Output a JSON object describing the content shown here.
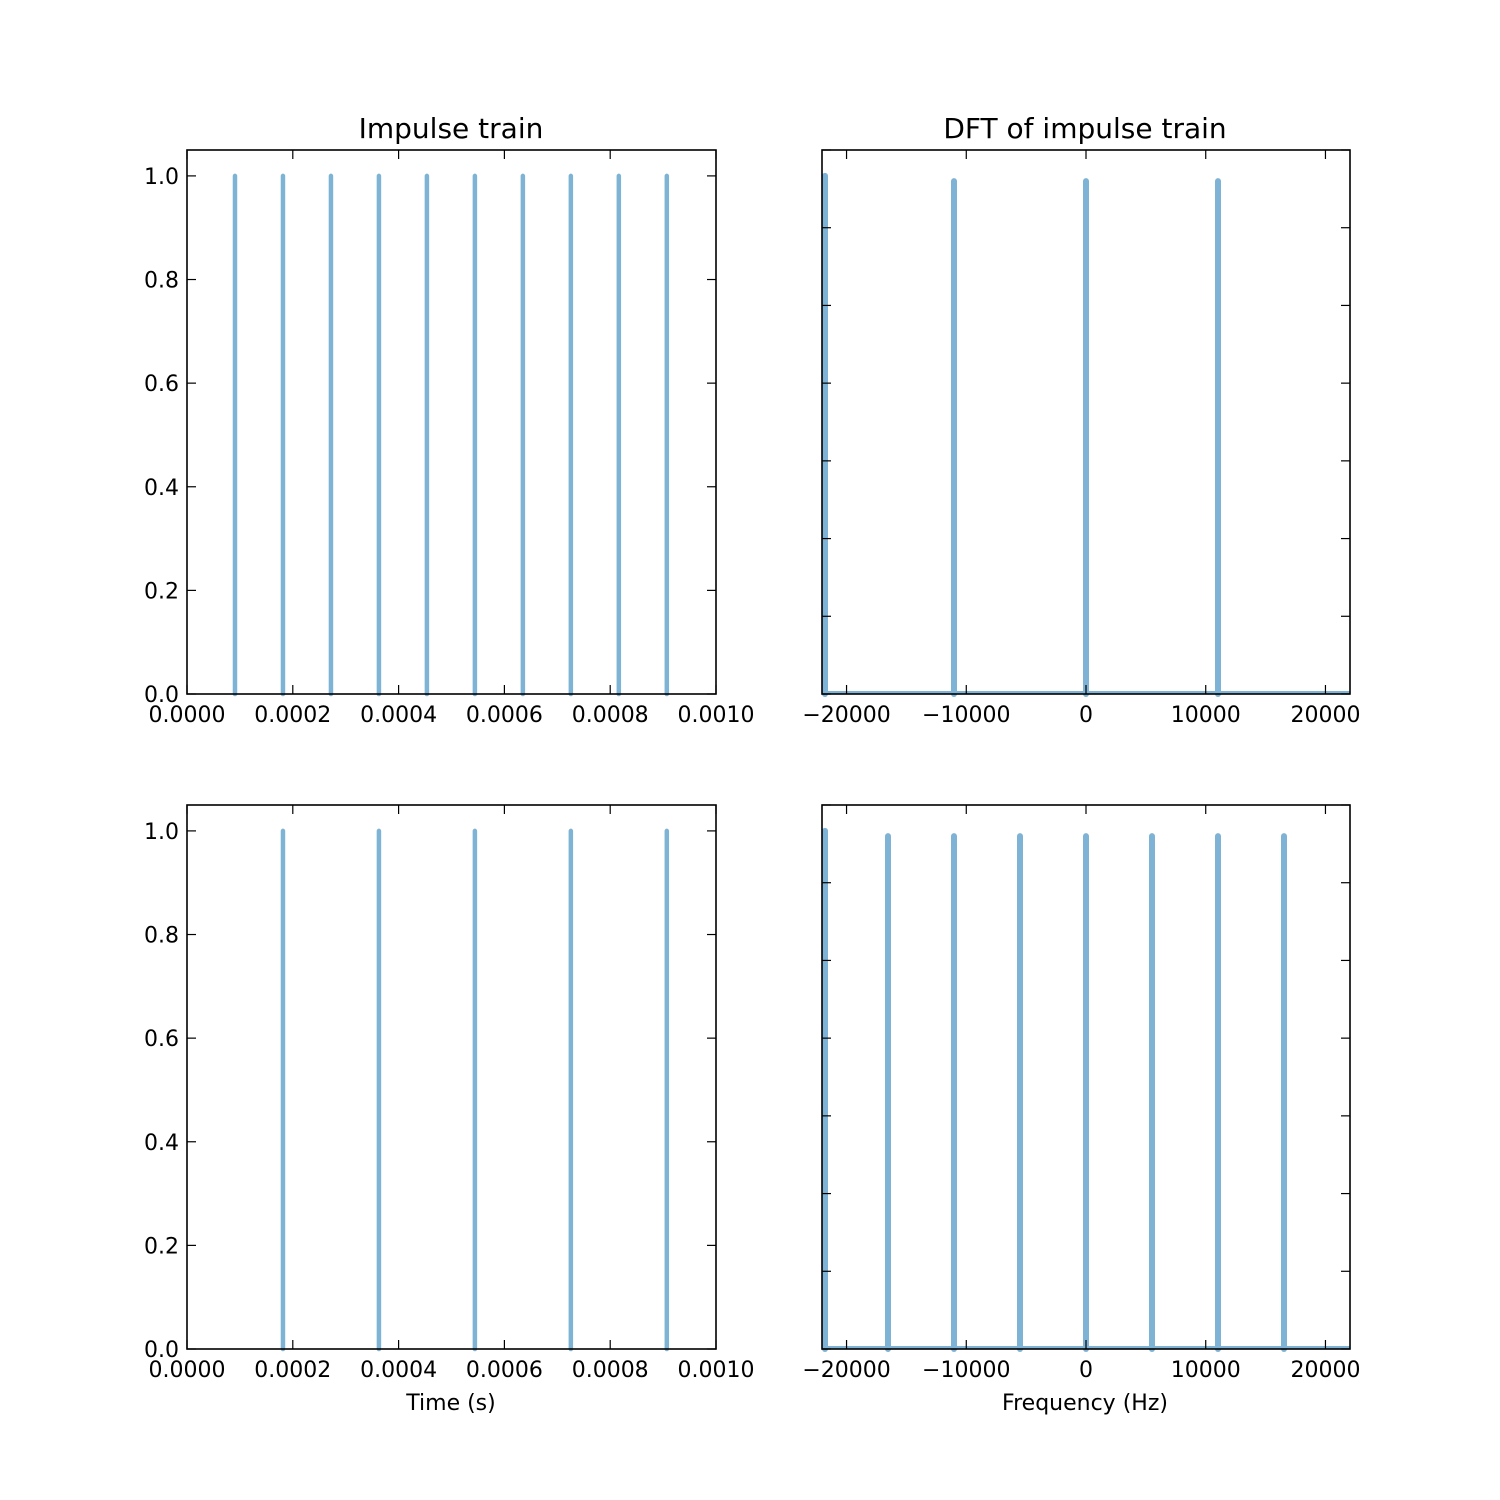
{
  "figure": {
    "background": "#ffffff",
    "line_color": "#7fb3d5"
  },
  "chart_data": [
    {
      "type": "line",
      "panel": "top-left",
      "title": "Impulse train",
      "xlabel": "",
      "ylabel": "",
      "xlim": [
        0,
        0.001
      ],
      "ylim": [
        0,
        1.05
      ],
      "xticks": [
        0.0,
        0.0002,
        0.0004,
        0.0006,
        0.0008,
        0.001
      ],
      "xtick_labels": [
        "0.0000",
        "0.0002",
        "0.0004",
        "0.0006",
        "0.0008",
        "0.0010"
      ],
      "yticks": [
        0.0,
        0.2,
        0.4,
        0.6,
        0.8,
        1.0
      ],
      "ytick_labels": [
        "0.0",
        "0.2",
        "0.4",
        "0.6",
        "0.8",
        "1.0"
      ],
      "impulses": {
        "x": [
          9.07e-05,
          0.0001814,
          0.0002721,
          0.0003628,
          0.0004535,
          0.0005442,
          0.0006349,
          0.0007256,
          0.0008163,
          0.000907
        ],
        "y": [
          1,
          1,
          1,
          1,
          1,
          1,
          1,
          1,
          1,
          1
        ]
      },
      "baseline": null,
      "grid": false,
      "legend": "none"
    },
    {
      "type": "line",
      "panel": "top-right",
      "title": "DFT of impulse train",
      "xlabel": "",
      "ylabel": "",
      "xlim": [
        -22050,
        22050
      ],
      "ylim": [
        0,
        1.05
      ],
      "xticks": [
        -20000,
        -10000,
        0,
        10000,
        20000
      ],
      "xtick_labels": [
        "−20000",
        "−10000",
        "0",
        "10000",
        "20000"
      ],
      "yticks": [
        0.0,
        0.15,
        0.3,
        0.45,
        0.6,
        0.75,
        0.9,
        1.05
      ],
      "ytick_labels": [],
      "impulses": {
        "x": [
          -22050,
          -11025,
          0,
          11025
        ],
        "y": [
          1,
          0.99,
          0.99,
          0.99
        ]
      },
      "baseline": 0.003,
      "grid": false,
      "legend": "none"
    },
    {
      "type": "line",
      "panel": "bottom-left",
      "title": "",
      "xlabel": "Time (s)",
      "ylabel": "",
      "xlim": [
        0,
        0.001
      ],
      "ylim": [
        0,
        1.05
      ],
      "xticks": [
        0.0,
        0.0002,
        0.0004,
        0.0006,
        0.0008,
        0.001
      ],
      "xtick_labels": [
        "0.0000",
        "0.0002",
        "0.0004",
        "0.0006",
        "0.0008",
        "0.0010"
      ],
      "yticks": [
        0.0,
        0.2,
        0.4,
        0.6,
        0.8,
        1.0
      ],
      "ytick_labels": [
        "0.0",
        "0.2",
        "0.4",
        "0.6",
        "0.8",
        "1.0"
      ],
      "impulses": {
        "x": [
          0.0001814,
          0.0003628,
          0.0005442,
          0.0007256,
          0.000907
        ],
        "y": [
          1,
          1,
          1,
          1,
          1
        ]
      },
      "baseline": null,
      "grid": false,
      "legend": "none"
    },
    {
      "type": "line",
      "panel": "bottom-right",
      "title": "",
      "xlabel": "Frequency (Hz)",
      "ylabel": "",
      "xlim": [
        -22050,
        22050
      ],
      "ylim": [
        0,
        1.05
      ],
      "xticks": [
        -20000,
        -10000,
        0,
        10000,
        20000
      ],
      "xtick_labels": [
        "−20000",
        "−10000",
        "0",
        "10000",
        "20000"
      ],
      "yticks": [
        0.0,
        0.15,
        0.3,
        0.45,
        0.6,
        0.75,
        0.9,
        1.05
      ],
      "ytick_labels": [],
      "impulses": {
        "x": [
          -22050,
          -16537.5,
          -11025,
          -5512.5,
          0,
          5512.5,
          11025,
          16537.5
        ],
        "y": [
          1,
          0.99,
          0.99,
          0.99,
          0.99,
          0.99,
          0.99,
          0.99
        ]
      },
      "baseline": 0.003,
      "grid": false,
      "legend": "none"
    }
  ]
}
